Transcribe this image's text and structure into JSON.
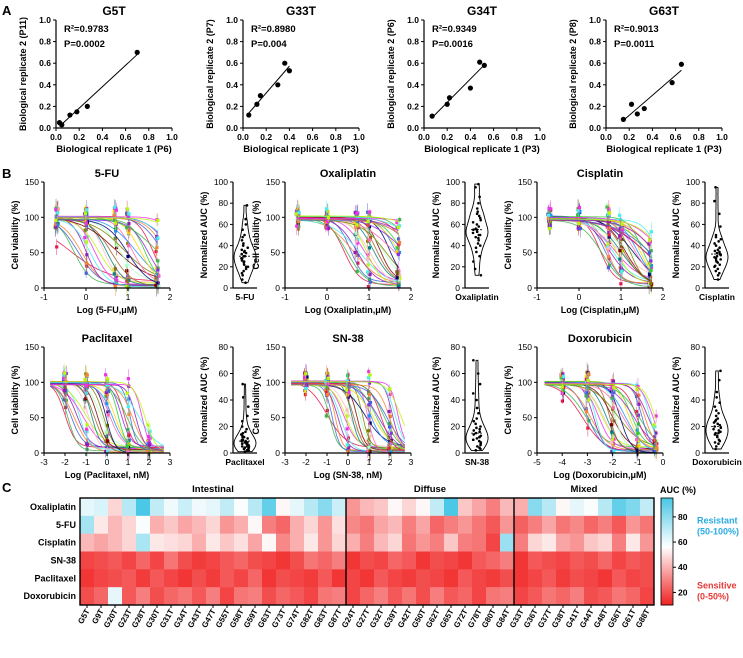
{
  "panel_labels": [
    "A",
    "B",
    "C"
  ],
  "chart_data": [
    {
      "type": "scatter",
      "title": "G5T",
      "xlabel": "Biological replicate 1 (P6)",
      "ylabel": "Biological replicate 2 (P11)",
      "xlim": [
        0,
        1
      ],
      "ylim": [
        0,
        1
      ],
      "r2": "R²=0.9783",
      "p": "P=0.0002",
      "ticks": [
        "0.0",
        "0.2",
        "0.4",
        "0.6",
        "0.8",
        "1.0"
      ],
      "x": [
        0.03,
        0.05,
        0.12,
        0.18,
        0.27,
        0.7
      ],
      "y": [
        0.05,
        0.03,
        0.12,
        0.15,
        0.2,
        0.7
      ]
    },
    {
      "type": "scatter",
      "title": "G33T",
      "xlabel": "Biological replicate 1 (P3)",
      "ylabel": "Biological replicate 2 (P7)",
      "xlim": [
        0,
        1
      ],
      "ylim": [
        0,
        1
      ],
      "r2": "R²=0.8980",
      "p": "P=0.004",
      "ticks": [
        "0.0",
        "0.2",
        "0.4",
        "0.6",
        "0.8",
        "1.0"
      ],
      "x": [
        0.05,
        0.12,
        0.15,
        0.3,
        0.36,
        0.4
      ],
      "y": [
        0.12,
        0.22,
        0.3,
        0.4,
        0.6,
        0.53
      ]
    },
    {
      "type": "scatter",
      "title": "G34T",
      "xlabel": "Biological replicate 1 (P3)",
      "ylabel": "Biological replicate 2 (P6)",
      "xlim": [
        0,
        1
      ],
      "ylim": [
        0,
        1
      ],
      "r2": "R²=0.9349",
      "p": "P=0.0016",
      "ticks": [
        "0.0",
        "0.2",
        "0.4",
        "0.6",
        "0.8",
        "1.0"
      ],
      "x": [
        0.07,
        0.2,
        0.22,
        0.4,
        0.48,
        0.52
      ],
      "y": [
        0.11,
        0.22,
        0.28,
        0.37,
        0.61,
        0.58
      ]
    },
    {
      "type": "scatter",
      "title": "G63T",
      "xlabel": "Biological replicate 1 (P3)",
      "ylabel": "Biological replicate 2 (P8)",
      "xlim": [
        0,
        1
      ],
      "ylim": [
        0,
        1
      ],
      "r2": "R²=0.9013",
      "p": "P=0.0011",
      "ticks": [
        "0.0",
        "0.2",
        "0.4",
        "0.6",
        "0.8",
        "1.0"
      ],
      "x": [
        0.15,
        0.22,
        0.27,
        0.33,
        0.57,
        0.65
      ],
      "y": [
        0.08,
        0.22,
        0.13,
        0.18,
        0.42,
        0.59
      ]
    },
    {
      "type": "line",
      "title": "5-FU",
      "xlabel": "Log (5-FU,μM)",
      "ylabel": "Cell viability (%)",
      "xlim": [
        -1,
        2
      ],
      "ylim": [
        0,
        150
      ],
      "xticks": [
        -1,
        0,
        1,
        2
      ],
      "yticks": [
        0,
        50,
        100,
        150
      ],
      "doses": [
        -0.7,
        0,
        0.7,
        1.0,
        1.7
      ],
      "ec50_range": [
        -0.4,
        2.3
      ],
      "bottom_range": [
        0,
        10
      ]
    },
    {
      "type": "line",
      "title": "Oxaliplatin",
      "xlabel": "Log (Oxaliplatin,μM)",
      "ylabel": "Cell viability (%)",
      "xlim": [
        -1,
        2
      ],
      "ylim": [
        0,
        150
      ],
      "xticks": [
        -1,
        0,
        1,
        2
      ],
      "yticks": [
        0,
        50,
        100,
        150
      ],
      "doses": [
        -0.7,
        0,
        0.7,
        1.0,
        1.7
      ],
      "ec50_range": [
        0.4,
        2.5
      ],
      "bottom_range": [
        0,
        10
      ]
    },
    {
      "type": "line",
      "title": "Cisplatin",
      "xlabel": "Log (Cisplatin,μM)",
      "ylabel": "Cell viability (%)",
      "xlim": [
        -1,
        2
      ],
      "ylim": [
        0,
        150
      ],
      "xticks": [
        -1,
        0,
        1,
        2
      ],
      "yticks": [
        0,
        50,
        100,
        150
      ],
      "doses": [
        -0.7,
        0,
        0.7,
        1.0,
        1.7
      ],
      "ec50_range": [
        0.5,
        2.0
      ],
      "bottom_range": [
        0,
        10
      ]
    },
    {
      "type": "line",
      "title": "Paclitaxel",
      "xlabel": "Log (Paclitaxel, nM)",
      "ylabel": "Cell viability (%)",
      "xlim": [
        -3,
        3
      ],
      "ylim": [
        0,
        150
      ],
      "xticks": [
        -3,
        -2,
        -1,
        0,
        1,
        2,
        3
      ],
      "yticks": [
        0,
        50,
        100,
        150
      ],
      "doses": [
        -2,
        -1,
        0,
        1,
        2
      ],
      "ec50_range": [
        -2,
        1.8
      ],
      "bottom_range": [
        0,
        10
      ]
    },
    {
      "type": "line",
      "title": "SN-38",
      "xlabel": "Log (SN-38, nM)",
      "ylabel": "Cell viability (%)",
      "xlim": [
        -3,
        3
      ],
      "ylim": [
        0,
        150
      ],
      "xticks": [
        -3,
        -2,
        -1,
        0,
        1,
        2,
        3
      ],
      "yticks": [
        0,
        50,
        100,
        150
      ],
      "doses": [
        -2,
        -1,
        0,
        1,
        2
      ],
      "ec50_range": [
        -1,
        2.5
      ],
      "bottom_range": [
        0,
        10
      ]
    },
    {
      "type": "line",
      "title": "Doxorubicin",
      "xlabel": "Log (Doxorubicin,μM)",
      "ylabel": "Cell viability (%)",
      "xlim": [
        -5,
        0
      ],
      "ylim": [
        0,
        150
      ],
      "xticks": [
        -5,
        -4,
        -3,
        -2,
        -1,
        0
      ],
      "yticks": [
        0,
        50,
        100,
        150
      ],
      "doses": [
        -4,
        -3,
        -2,
        -1,
        -0.3
      ],
      "ec50_range": [
        -3.2,
        -0.3
      ],
      "bottom_range": [
        0,
        10
      ]
    },
    {
      "type": "violin",
      "label": "5-FU",
      "ylabel": "Normalized AUC (%)",
      "ylim": [
        0,
        100
      ],
      "yticks": [
        0,
        20,
        40,
        60,
        80,
        100
      ],
      "values": [
        5,
        8,
        12,
        14,
        16,
        18,
        20,
        20,
        22,
        24,
        25,
        26,
        28,
        28,
        30,
        30,
        32,
        33,
        34,
        35,
        36,
        38,
        40,
        42,
        45,
        48,
        50,
        55,
        60,
        65,
        78
      ]
    },
    {
      "type": "violin",
      "label": "Oxaliplatin",
      "ylabel": "Normalized AUC (%)",
      "ylim": [
        0,
        100
      ],
      "yticks": [
        0,
        20,
        40,
        60,
        80,
        100
      ],
      "values": [
        12,
        18,
        25,
        30,
        34,
        38,
        40,
        42,
        45,
        47,
        48,
        50,
        50,
        52,
        53,
        55,
        55,
        56,
        58,
        60,
        62,
        64,
        66,
        68,
        70,
        72,
        75,
        80,
        86,
        95,
        98
      ]
    },
    {
      "type": "violin",
      "label": "Cisplatin",
      "ylabel": "Normalized AUC (%)",
      "ylim": [
        0,
        100
      ],
      "yticks": [
        0,
        20,
        40,
        60,
        80,
        100
      ],
      "values": [
        8,
        12,
        14,
        16,
        18,
        20,
        21,
        22,
        24,
        25,
        26,
        27,
        28,
        29,
        30,
        31,
        32,
        33,
        34,
        35,
        36,
        38,
        40,
        42,
        44,
        46,
        48,
        50,
        58,
        70,
        82,
        95
      ]
    },
    {
      "type": "violin",
      "label": "Paclitaxel",
      "ylabel": "Normalized AUC (%)",
      "ylim": [
        0,
        80
      ],
      "yticks": [
        0,
        20,
        40,
        60,
        80
      ],
      "values": [
        1,
        2,
        2,
        3,
        3,
        4,
        4,
        5,
        5,
        5,
        6,
        6,
        7,
        7,
        8,
        8,
        9,
        9,
        10,
        10,
        11,
        12,
        12,
        13,
        14,
        15,
        16,
        18,
        20,
        24,
        28,
        35,
        42,
        52
      ]
    },
    {
      "type": "violin",
      "label": "SN-38",
      "ylabel": "Normalized AUC (%)",
      "ylim": [
        0,
        80
      ],
      "yticks": [
        0,
        20,
        40,
        60,
        80
      ],
      "values": [
        2,
        3,
        4,
        5,
        6,
        7,
        8,
        9,
        10,
        10,
        11,
        12,
        12,
        13,
        14,
        15,
        16,
        17,
        18,
        19,
        20,
        22,
        24,
        26,
        30,
        34,
        40,
        45,
        52,
        60,
        70
      ]
    },
    {
      "type": "violin",
      "label": "Doxorubicin",
      "ylabel": "Normalized AUC (%)",
      "ylim": [
        0,
        80
      ],
      "yticks": [
        0,
        20,
        40,
        60,
        80
      ],
      "values": [
        3,
        5,
        7,
        8,
        9,
        10,
        12,
        13,
        14,
        15,
        15,
        16,
        17,
        18,
        19,
        20,
        21,
        22,
        23,
        24,
        25,
        26,
        28,
        30,
        32,
        35,
        38,
        42,
        46,
        55,
        62
      ]
    },
    {
      "type": "heatmap",
      "rows": [
        "Oxaliplatin",
        "5-FU",
        "Cisplatin",
        "SN-38",
        "Paclitaxel",
        "Doxorubicin"
      ],
      "cols": [
        "G5T",
        "G9T",
        "G20T",
        "G23T",
        "G28T",
        "G30T",
        "G31T",
        "G34T",
        "G43T",
        "G47T",
        "G55T",
        "G58T",
        "G59T",
        "G63T",
        "G73T",
        "G74T",
        "G82T",
        "G83T",
        "G87T",
        "G24T",
        "G27T",
        "G32T",
        "G39T",
        "G42T",
        "G50T",
        "G62T",
        "G65T",
        "G72T",
        "G78T",
        "G80T",
        "G84T",
        "G33T",
        "G36T",
        "G37T",
        "G38T",
        "G41T",
        "G44T",
        "G48T",
        "G56T",
        "G61T",
        "G88T"
      ],
      "groups": [
        {
          "name": "Intestinal",
          "start": 0,
          "end": 19
        },
        {
          "name": "Diffuse",
          "start": 19,
          "end": 31
        },
        {
          "name": "Mixed",
          "start": 31,
          "end": 41
        }
      ],
      "values": [
        [
          62,
          65,
          48,
          72,
          95,
          70,
          60,
          68,
          60,
          62,
          70,
          58,
          72,
          90,
          55,
          62,
          72,
          82,
          68,
          35,
          42,
          45,
          55,
          48,
          55,
          70,
          96,
          45,
          38,
          30,
          42,
          40,
          82,
          72,
          55,
          62,
          58,
          72,
          90,
          84,
          70
        ],
        [
          76,
          52,
          42,
          48,
          58,
          40,
          45,
          38,
          42,
          48,
          35,
          40,
          55,
          30,
          25,
          40,
          48,
          35,
          50,
          32,
          28,
          38,
          42,
          30,
          38,
          25,
          30,
          35,
          28,
          22,
          35,
          24,
          30,
          38,
          28,
          32,
          25,
          30,
          22,
          35,
          28
        ],
        [
          42,
          38,
          42,
          48,
          75,
          52,
          50,
          48,
          40,
          52,
          45,
          50,
          38,
          55,
          32,
          40,
          52,
          35,
          48,
          40,
          30,
          42,
          48,
          28,
          35,
          30,
          45,
          30,
          28,
          18,
          78,
          30,
          48,
          52,
          38,
          35,
          45,
          48,
          30,
          52,
          35
        ],
        [
          18,
          20,
          22,
          18,
          25,
          18,
          28,
          20,
          16,
          18,
          22,
          25,
          20,
          18,
          15,
          20,
          28,
          25,
          30,
          15,
          20,
          18,
          25,
          22,
          15,
          20,
          18,
          15,
          22,
          25,
          30,
          15,
          22,
          20,
          18,
          22,
          20,
          25,
          18,
          22,
          20
        ],
        [
          15,
          18,
          20,
          22,
          16,
          22,
          18,
          15,
          20,
          16,
          22,
          18,
          25,
          15,
          20,
          18,
          16,
          22,
          15,
          18,
          15,
          22,
          18,
          16,
          20,
          18,
          15,
          22,
          18,
          16,
          20,
          15,
          18,
          22,
          16,
          20,
          18,
          15,
          22,
          18,
          20
        ],
        [
          20,
          25,
          62,
          22,
          30,
          20,
          25,
          28,
          22,
          30,
          18,
          28,
          30,
          20,
          25,
          22,
          18,
          28,
          30,
          18,
          25,
          30,
          22,
          28,
          20,
          30,
          22,
          25,
          18,
          28,
          30,
          18,
          22,
          28,
          25,
          30,
          20,
          22,
          28,
          25,
          18
        ]
      ],
      "legend_title": "AUC (%)",
      "colorbar_ticks": [
        20,
        40,
        60,
        80
      ],
      "vmin": 10,
      "vmax": 95,
      "resistant_label": "Resistant",
      "resistant_range": "(50-100%)",
      "sensitive_label": "Sensitive",
      "sensitive_range": "(0-50%)"
    }
  ]
}
